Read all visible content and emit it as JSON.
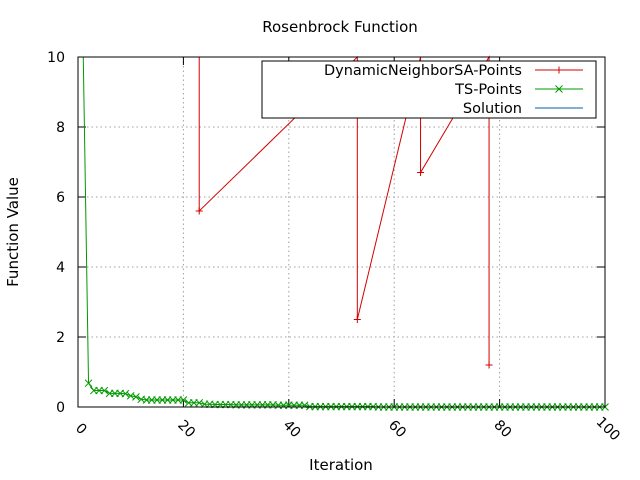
{
  "chart_data": {
    "type": "line",
    "title": "Rosenbrock Function",
    "xlabel": "Iteration",
    "ylabel": "Function Value",
    "xlim": [
      0,
      100
    ],
    "ylim": [
      0,
      10
    ],
    "xticks": [
      "0",
      "20",
      "40",
      "60",
      "80",
      "100"
    ],
    "yticks": [
      "0",
      "2",
      "4",
      "6",
      "8",
      "10"
    ],
    "grid": true,
    "legend_position": "top-right",
    "series": [
      {
        "name": "DynamicNeighborSA-Points",
        "color": "#d40000",
        "marker": "plus",
        "x": [
          0,
          23,
          23,
          53,
          53,
          65,
          65,
          78,
          78
        ],
        "y": [
          10,
          10,
          5.6,
          10,
          2.5,
          10,
          6.7,
          10,
          1.2
        ]
      },
      {
        "name": "TS-Points",
        "color": "#009900",
        "marker": "x",
        "x": [
          1,
          2,
          3,
          4,
          5,
          6,
          7,
          8,
          9,
          10,
          11,
          12,
          13,
          14,
          15,
          16,
          17,
          18,
          19,
          20,
          21,
          22,
          23,
          24,
          25,
          26,
          27,
          28,
          29,
          30,
          31,
          32,
          33,
          34,
          35,
          36,
          37,
          38,
          39,
          40,
          41,
          42,
          43,
          44,
          45,
          46,
          47,
          48,
          49,
          50,
          51,
          52,
          53,
          54,
          55,
          56,
          57,
          58,
          59,
          60,
          61,
          62,
          63,
          64,
          65,
          66,
          67,
          68,
          69,
          70,
          71,
          72,
          73,
          74,
          75,
          76,
          77,
          78,
          79,
          80,
          81,
          82,
          83,
          84,
          85,
          86,
          87,
          88,
          89,
          90,
          91,
          92,
          93,
          94,
          95,
          96,
          97,
          98,
          99,
          100
        ],
        "y": [
          10,
          0.68,
          0.47,
          0.47,
          0.47,
          0.39,
          0.39,
          0.39,
          0.38,
          0.32,
          0.29,
          0.22,
          0.2,
          0.2,
          0.2,
          0.2,
          0.2,
          0.2,
          0.2,
          0.2,
          0.12,
          0.12,
          0.12,
          0.08,
          0.08,
          0.07,
          0.07,
          0.07,
          0.07,
          0.06,
          0.06,
          0.06,
          0.06,
          0.06,
          0.06,
          0.06,
          0.06,
          0.05,
          0.05,
          0.05,
          0.05,
          0.05,
          0.05,
          0.01,
          0.01,
          0.01,
          0.01,
          0.01,
          0.01,
          0.01,
          0.01,
          0.01,
          0.01,
          0.01,
          0.01,
          0.01,
          0.0,
          0.0,
          0.0,
          0.0,
          0.0,
          0.0,
          0.0,
          0.0,
          0.0,
          0.0,
          0.0,
          0.0,
          0.0,
          0.0,
          0.0,
          0.0,
          0.0,
          0.0,
          0.0,
          0.0,
          0.0,
          0.0,
          0.0,
          0.0,
          0.0,
          0.0,
          0.0,
          0.0,
          0.0,
          0.0,
          0.0,
          0.0,
          0.0,
          0.0,
          0.0,
          0.0,
          0.0,
          0.0,
          0.0,
          0.0,
          0.0,
          0.0,
          0.0,
          0.0
        ]
      },
      {
        "name": "Solution",
        "color": "#0060ad",
        "marker": "none",
        "x": [],
        "y": []
      }
    ]
  }
}
